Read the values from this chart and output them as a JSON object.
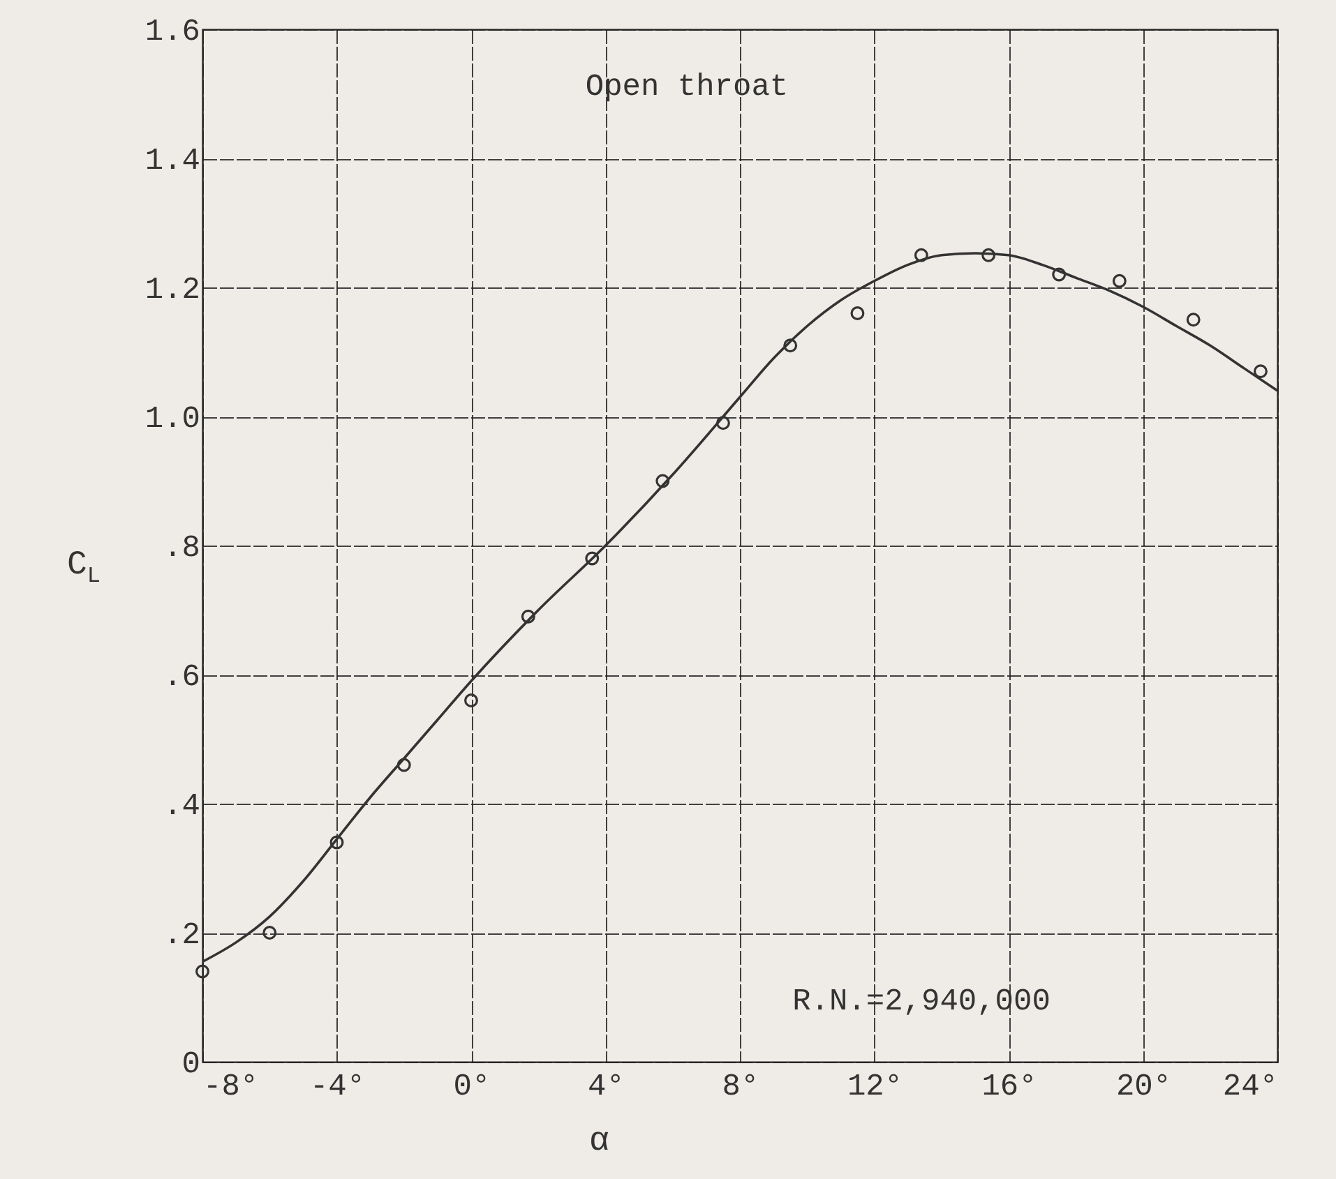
{
  "chart_data": {
    "type": "scatter",
    "xlabel": "α",
    "ylabel": "C$_{L}$",
    "annotations": [
      "Open throat",
      "R.N.=2,940,000"
    ],
    "xlim": [
      -8,
      24
    ],
    "ylim": [
      0,
      1.6
    ],
    "xticks": [
      {
        "value": -8,
        "label": "-8°"
      },
      {
        "value": -4,
        "label": "-4°"
      },
      {
        "value": 0,
        "label": "0°"
      },
      {
        "value": 4,
        "label": "4°"
      },
      {
        "value": 8,
        "label": "8°"
      },
      {
        "value": 12,
        "label": "12°"
      },
      {
        "value": 16,
        "label": "16°"
      },
      {
        "value": 20,
        "label": "20°"
      },
      {
        "value": 24,
        "label": "24°"
      }
    ],
    "yticks": [
      0,
      {
        "value": 0.2,
        "label": ".2"
      },
      {
        "value": 0.4,
        "label": ".4"
      },
      {
        "value": 0.6,
        "label": ".6"
      },
      {
        "value": 0.8,
        "label": ".8"
      },
      {
        "value": 1.0,
        "label": "1.0"
      },
      {
        "value": 1.2,
        "label": "1.2"
      },
      {
        "value": 1.4,
        "label": "1.4"
      },
      {
        "value": 1.6,
        "label": "1.6"
      }
    ],
    "grid": true,
    "marker": "circle",
    "series": [
      {
        "color": "#333333",
        "x": [
          -8,
          -6,
          -4,
          -2,
          0,
          1.7,
          3.6,
          5.7,
          7.5,
          9.5,
          11.5,
          13.4,
          15.4,
          17.5,
          19.3,
          21.5,
          23.5
        ],
        "values": [
          0.14,
          0.2,
          0.34,
          0.46,
          0.56,
          0.69,
          0.78,
          0.9,
          0.99,
          1.11,
          1.16,
          1.25,
          1.25,
          1.22,
          1.21,
          1.15,
          1.07
        ]
      },
      {
        "type": "line",
        "color": "#333333",
        "marker": "none",
        "line_style": "solid",
        "x": [
          -8,
          -7,
          -6,
          -5,
          -4,
          -3,
          -2,
          -1,
          0,
          2,
          4,
          6,
          8,
          9,
          10,
          11,
          12,
          13,
          14,
          15,
          16,
          17,
          18,
          19,
          20,
          21,
          22,
          23,
          24
        ],
        "values": [
          0.155,
          0.185,
          0.225,
          0.28,
          0.345,
          0.41,
          0.47,
          0.53,
          0.59,
          0.7,
          0.8,
          0.91,
          1.03,
          1.09,
          1.14,
          1.18,
          1.21,
          1.235,
          1.25,
          1.253,
          1.25,
          1.235,
          1.215,
          1.195,
          1.17,
          1.14,
          1.11,
          1.075,
          1.04
        ]
      }
    ]
  }
}
